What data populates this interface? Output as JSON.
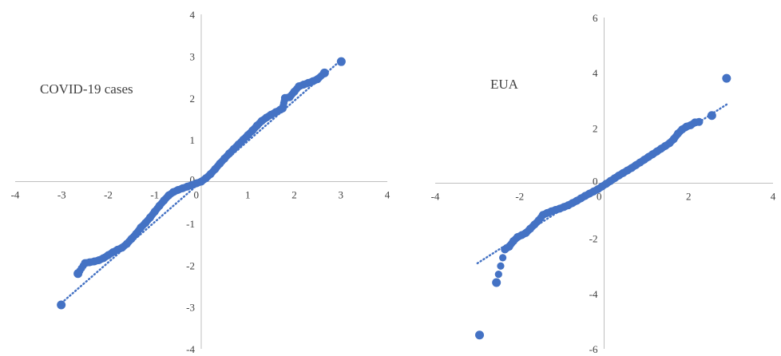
{
  "chart_data": [
    {
      "type": "scatter",
      "title": "COVID-19 cases",
      "xlabel": "",
      "ylabel": "",
      "xlim": [
        -4,
        4
      ],
      "ylim": [
        -4,
        4
      ],
      "xticks": [
        -4,
        -3,
        -2,
        -1,
        0,
        1,
        2,
        3,
        4
      ],
      "yticks": [
        -4,
        -3,
        -2,
        -1,
        0,
        1,
        2,
        3,
        4
      ],
      "grid": false,
      "legend": "none",
      "marker_color": "#4472C4",
      "trendline": {
        "style": "dotted",
        "from": [
          -3.0,
          -2.9
        ],
        "to": [
          3.0,
          2.9
        ]
      },
      "series": [
        {
          "x": [
            -3.01,
            -2.65,
            -2.5,
            -2.4,
            -2.3,
            -2.2,
            -2.1,
            -2.0,
            -1.9,
            -1.8,
            -1.7,
            -1.6,
            -1.5,
            -1.4,
            -1.3,
            -1.2,
            -1.1,
            -1.0,
            -0.9,
            -0.8,
            -0.7,
            -0.6,
            -0.5,
            -0.4,
            -0.3,
            -0.2,
            -0.1,
            0.0,
            0.1,
            0.2,
            0.3,
            0.4,
            0.5,
            0.6,
            0.7,
            0.8,
            0.9,
            1.0,
            1.1,
            1.2,
            1.3,
            1.4,
            1.5,
            1.6,
            1.7,
            1.75,
            1.8,
            1.9,
            2.0,
            2.1,
            2.2,
            2.3,
            2.4,
            2.5,
            2.65,
            3.01
          ],
          "y": [
            -2.95,
            -2.2,
            -1.95,
            -1.93,
            -1.91,
            -1.88,
            -1.83,
            -1.76,
            -1.69,
            -1.63,
            -1.58,
            -1.49,
            -1.37,
            -1.25,
            -1.1,
            -0.99,
            -0.86,
            -0.72,
            -0.58,
            -0.45,
            -0.33,
            -0.25,
            -0.2,
            -0.16,
            -0.12,
            -0.08,
            -0.04,
            0.0,
            0.08,
            0.18,
            0.3,
            0.43,
            0.55,
            0.67,
            0.78,
            0.89,
            1.0,
            1.11,
            1.22,
            1.34,
            1.45,
            1.53,
            1.6,
            1.66,
            1.72,
            1.75,
            2.0,
            2.02,
            2.15,
            2.28,
            2.32,
            2.36,
            2.4,
            2.45,
            2.6,
            2.87
          ]
        }
      ]
    },
    {
      "type": "scatter",
      "title": "EUA",
      "xlabel": "",
      "ylabel": "",
      "xlim": [
        -4,
        4
      ],
      "ylim": [
        -6,
        6
      ],
      "xticks": [
        -4,
        -2,
        0,
        2,
        4
      ],
      "yticks": [
        -6,
        -4,
        -2,
        0,
        2,
        4,
        6
      ],
      "grid": false,
      "legend": "none",
      "marker_color": "#4472C4",
      "trendline": {
        "style": "dotted",
        "from": [
          -3.0,
          -2.9
        ],
        "to": [
          2.9,
          2.85
        ]
      },
      "series": [
        {
          "x": [
            -2.95,
            -2.55,
            -2.35,
            -2.25,
            -2.15,
            -2.05,
            -1.95,
            -1.85,
            -1.75,
            -1.65,
            -1.55,
            -1.45,
            -1.35,
            -1.25,
            -1.15,
            -1.05,
            -0.95,
            -0.85,
            -0.75,
            -0.65,
            -0.55,
            -0.45,
            -0.35,
            -0.25,
            -0.15,
            -0.05,
            0.05,
            0.15,
            0.25,
            0.35,
            0.45,
            0.55,
            0.65,
            0.75,
            0.85,
            0.95,
            1.05,
            1.15,
            1.25,
            1.35,
            1.45,
            1.55,
            1.65,
            1.75,
            1.85,
            1.95,
            2.05,
            2.15,
            2.25,
            2.55,
            2.9
          ],
          "y": [
            -5.5,
            -3.6,
            -2.4,
            -2.3,
            -2.1,
            -1.95,
            -1.88,
            -1.8,
            -1.65,
            -1.5,
            -1.35,
            -1.15,
            -1.08,
            -1.02,
            -0.97,
            -0.92,
            -0.86,
            -0.8,
            -0.72,
            -0.64,
            -0.55,
            -0.46,
            -0.38,
            -0.3,
            -0.22,
            -0.12,
            -0.02,
            0.08,
            0.18,
            0.28,
            0.37,
            0.46,
            0.55,
            0.65,
            0.75,
            0.85,
            0.95,
            1.05,
            1.15,
            1.25,
            1.35,
            1.45,
            1.6,
            1.8,
            1.95,
            2.05,
            2.1,
            2.2,
            2.22,
            2.45,
            3.8
          ]
        }
      ]
    }
  ]
}
